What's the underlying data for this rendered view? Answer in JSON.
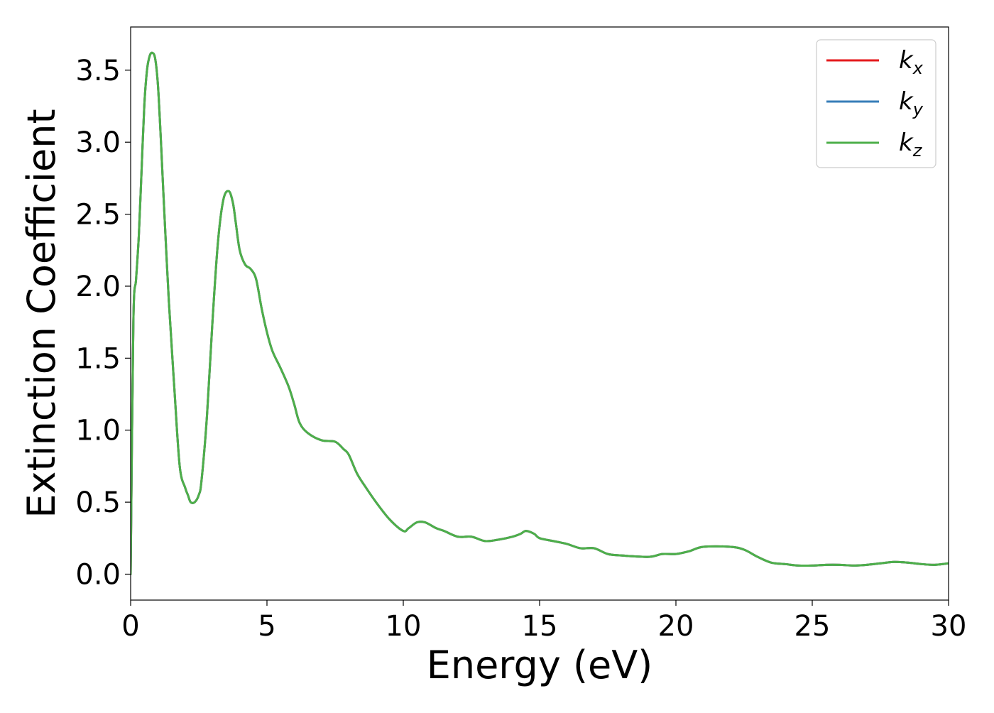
{
  "chart_data": {
    "type": "line",
    "title": "",
    "xlabel": "Energy (eV)",
    "ylabel": "Extinction Coefficient",
    "xlim": [
      0,
      30
    ],
    "ylim": [
      -0.18,
      3.8
    ],
    "xticks": [
      0,
      5,
      10,
      15,
      20,
      25,
      30
    ],
    "yticks": [
      0.0,
      0.5,
      1.0,
      1.5,
      2.0,
      2.5,
      3.0,
      3.5
    ],
    "xtick_labels": [
      "0",
      "5",
      "10",
      "15",
      "20",
      "25",
      "30"
    ],
    "ytick_labels": [
      "0.0",
      "0.5",
      "1.0",
      "1.5",
      "2.0",
      "2.5",
      "3.0",
      "3.5"
    ],
    "grid": false,
    "legend_position": "top-right",
    "x": [
      0.0,
      0.1,
      0.2,
      0.3,
      0.4,
      0.5,
      0.6,
      0.7,
      0.8,
      0.9,
      1.0,
      1.1,
      1.2,
      1.4,
      1.6,
      1.8,
      2.0,
      2.1,
      2.2,
      2.35,
      2.5,
      2.6,
      2.8,
      3.0,
      3.2,
      3.4,
      3.6,
      3.75,
      3.85,
      4.0,
      4.2,
      4.4,
      4.6,
      4.8,
      5.0,
      5.2,
      5.5,
      5.8,
      6.0,
      6.2,
      6.5,
      7.0,
      7.5,
      7.8,
      8.0,
      8.3,
      8.6,
      9.0,
      9.5,
      10.0,
      10.2,
      10.5,
      10.8,
      11.2,
      11.5,
      12.0,
      12.5,
      13.0,
      13.5,
      14.0,
      14.3,
      14.5,
      14.8,
      15.0,
      15.5,
      16.0,
      16.5,
      17.0,
      17.5,
      18.0,
      19.0,
      19.5,
      20.0,
      20.5,
      21.0,
      22.0,
      22.5,
      23.0,
      23.5,
      24.0,
      24.5,
      25.0,
      25.5,
      26.0,
      26.5,
      27.0,
      27.5,
      28.0,
      28.5,
      29.0,
      29.5,
      30.0
    ],
    "series": [
      {
        "name": "k_x",
        "label_base": "k",
        "label_sub": "x",
        "color": "#e41a1c",
        "y": [
          0.0,
          1.75,
          2.05,
          2.35,
          2.8,
          3.25,
          3.5,
          3.6,
          3.62,
          3.58,
          3.4,
          3.05,
          2.65,
          1.9,
          1.3,
          0.75,
          0.6,
          0.55,
          0.5,
          0.5,
          0.55,
          0.65,
          1.1,
          1.75,
          2.3,
          2.6,
          2.66,
          2.58,
          2.45,
          2.25,
          2.15,
          2.12,
          2.05,
          1.85,
          1.68,
          1.55,
          1.43,
          1.3,
          1.18,
          1.05,
          0.98,
          0.93,
          0.92,
          0.87,
          0.83,
          0.7,
          0.61,
          0.5,
          0.38,
          0.3,
          0.32,
          0.36,
          0.36,
          0.32,
          0.3,
          0.26,
          0.26,
          0.23,
          0.24,
          0.26,
          0.28,
          0.3,
          0.28,
          0.25,
          0.23,
          0.21,
          0.18,
          0.18,
          0.14,
          0.13,
          0.12,
          0.14,
          0.14,
          0.16,
          0.19,
          0.19,
          0.17,
          0.12,
          0.08,
          0.07,
          0.06,
          0.06,
          0.065,
          0.065,
          0.06,
          0.065,
          0.075,
          0.085,
          0.08,
          0.07,
          0.065,
          0.075
        ]
      },
      {
        "name": "k_y",
        "label_base": "k",
        "label_sub": "y",
        "color": "#377eb8",
        "y": [
          0.0,
          1.75,
          2.05,
          2.35,
          2.8,
          3.25,
          3.5,
          3.6,
          3.62,
          3.58,
          3.4,
          3.05,
          2.65,
          1.9,
          1.3,
          0.75,
          0.6,
          0.55,
          0.5,
          0.5,
          0.55,
          0.65,
          1.1,
          1.75,
          2.3,
          2.6,
          2.66,
          2.58,
          2.45,
          2.25,
          2.15,
          2.12,
          2.05,
          1.85,
          1.68,
          1.55,
          1.43,
          1.3,
          1.18,
          1.05,
          0.98,
          0.93,
          0.92,
          0.87,
          0.83,
          0.7,
          0.61,
          0.5,
          0.38,
          0.3,
          0.32,
          0.36,
          0.36,
          0.32,
          0.3,
          0.26,
          0.26,
          0.23,
          0.24,
          0.26,
          0.28,
          0.3,
          0.28,
          0.25,
          0.23,
          0.21,
          0.18,
          0.18,
          0.14,
          0.13,
          0.12,
          0.14,
          0.14,
          0.16,
          0.19,
          0.19,
          0.17,
          0.12,
          0.08,
          0.07,
          0.06,
          0.06,
          0.065,
          0.065,
          0.06,
          0.065,
          0.075,
          0.085,
          0.08,
          0.07,
          0.065,
          0.075
        ]
      },
      {
        "name": "k_z",
        "label_base": "k",
        "label_sub": "z",
        "color": "#4daf4a",
        "y": [
          0.0,
          1.75,
          2.05,
          2.35,
          2.8,
          3.25,
          3.5,
          3.6,
          3.62,
          3.58,
          3.4,
          3.05,
          2.65,
          1.9,
          1.3,
          0.75,
          0.6,
          0.55,
          0.5,
          0.5,
          0.55,
          0.65,
          1.1,
          1.75,
          2.3,
          2.6,
          2.66,
          2.58,
          2.45,
          2.25,
          2.15,
          2.12,
          2.05,
          1.85,
          1.68,
          1.55,
          1.43,
          1.3,
          1.18,
          1.05,
          0.98,
          0.93,
          0.92,
          0.87,
          0.83,
          0.7,
          0.61,
          0.5,
          0.38,
          0.3,
          0.32,
          0.36,
          0.36,
          0.32,
          0.3,
          0.26,
          0.26,
          0.23,
          0.24,
          0.26,
          0.28,
          0.3,
          0.28,
          0.25,
          0.23,
          0.21,
          0.18,
          0.18,
          0.14,
          0.13,
          0.12,
          0.14,
          0.14,
          0.16,
          0.19,
          0.19,
          0.17,
          0.12,
          0.08,
          0.07,
          0.06,
          0.06,
          0.065,
          0.065,
          0.06,
          0.065,
          0.075,
          0.085,
          0.08,
          0.07,
          0.065,
          0.075
        ]
      }
    ]
  }
}
